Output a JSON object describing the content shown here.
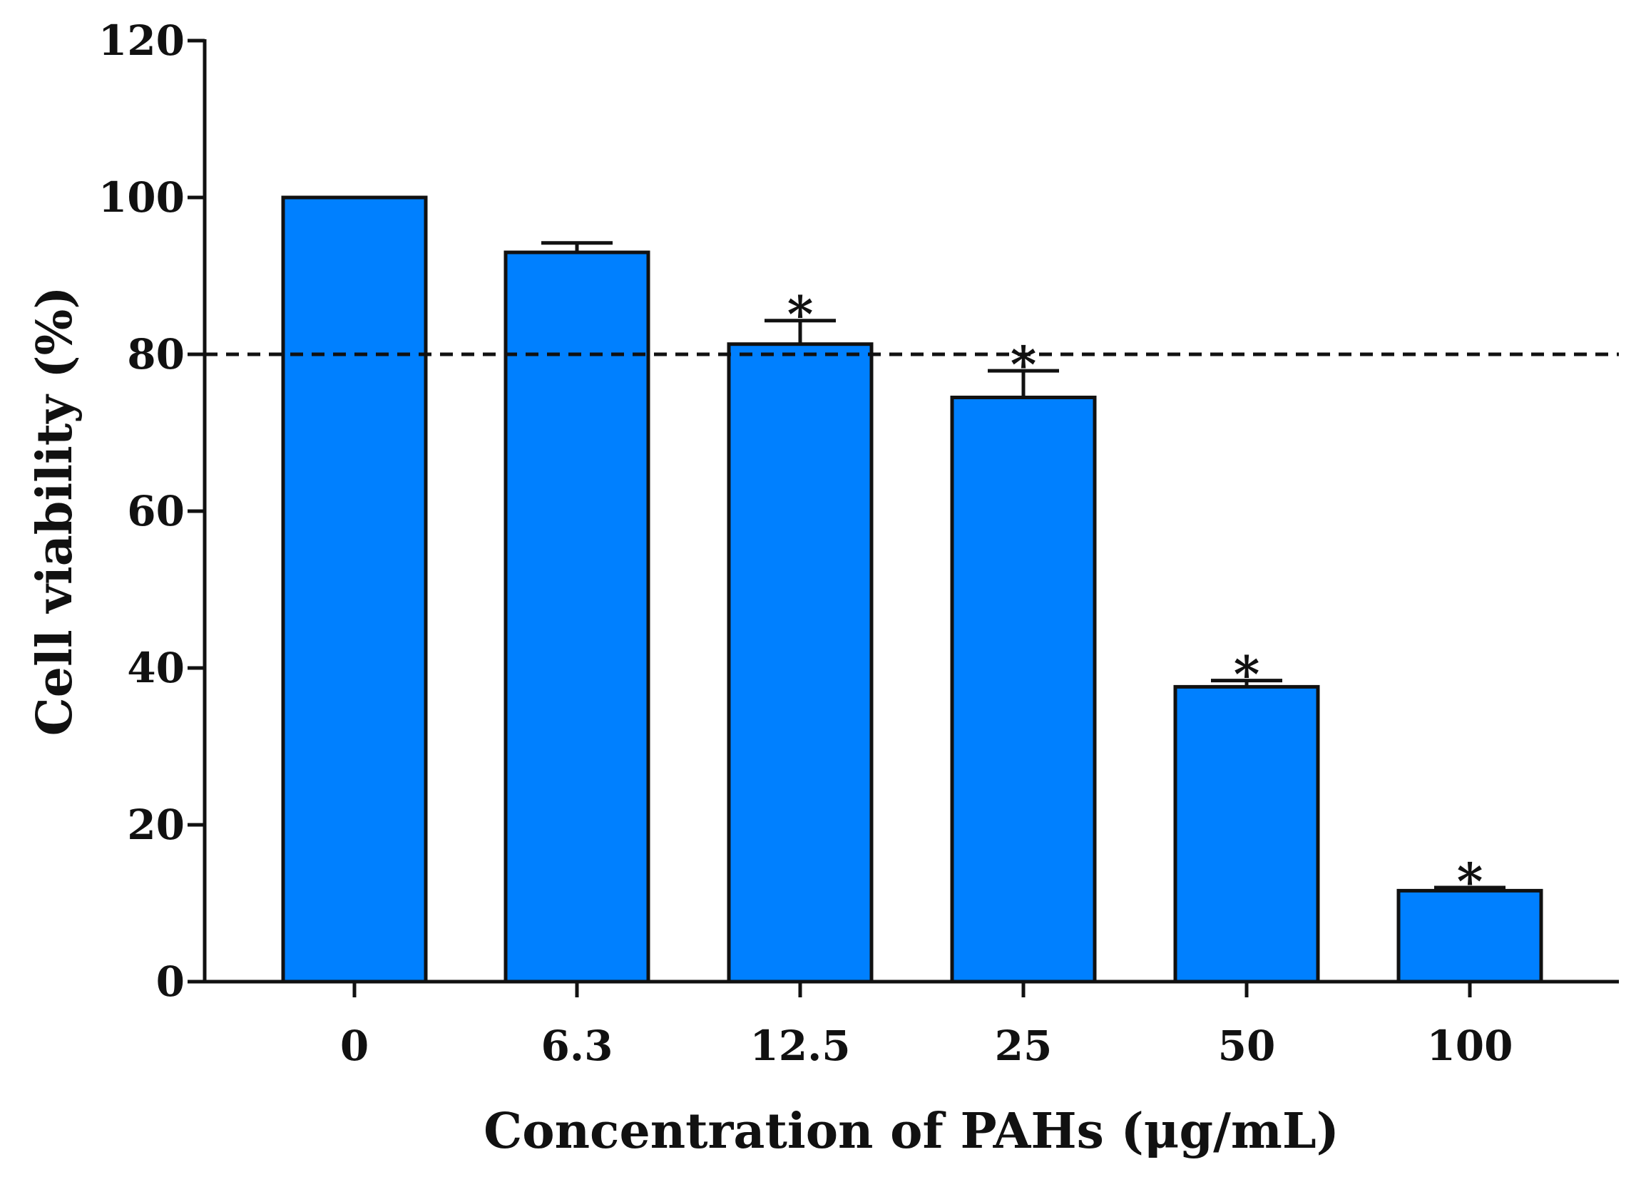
{
  "chart_data": {
    "type": "bar",
    "title": "",
    "xlabel": "Concentration of PAHs (μg/mL)",
    "ylabel": "Cell viability (%)",
    "categories": [
      "0",
      "6.3",
      "12.5",
      "25",
      "50",
      "100"
    ],
    "values": [
      100,
      93,
      81.3,
      74.5,
      37.6,
      11.6
    ],
    "error_upper": [
      0,
      1.2,
      3.0,
      3.4,
      0.8,
      0.4
    ],
    "significance": [
      "",
      "",
      "*",
      "*",
      "*",
      "*"
    ],
    "reference_line": {
      "value": 80,
      "style": "dashed"
    },
    "ylim": [
      0,
      120
    ],
    "yticks": [
      0,
      20,
      40,
      60,
      80,
      100,
      120
    ],
    "grid": false,
    "legend": "none",
    "colors": {
      "bar_fill": "#0080FF",
      "bar_stroke": "#111111",
      "axis": "#111111",
      "text": "#111111"
    }
  }
}
